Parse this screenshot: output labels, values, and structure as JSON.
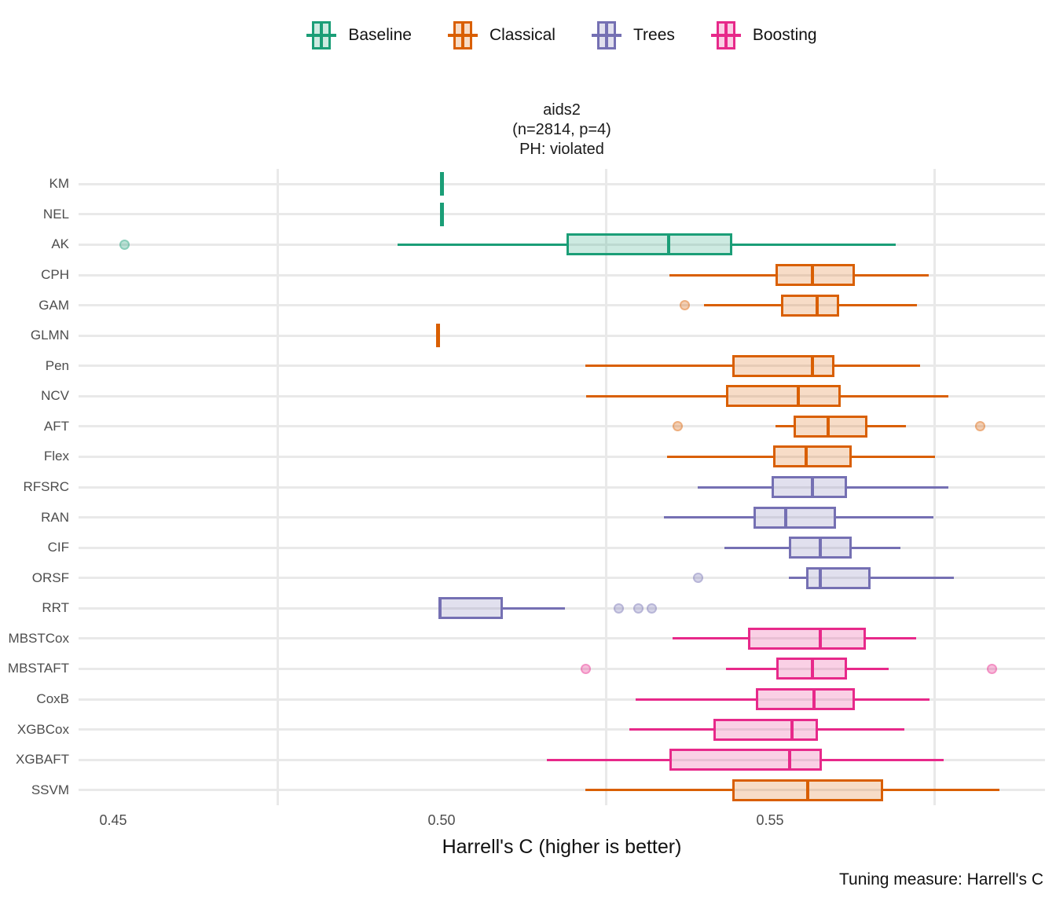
{
  "title": {
    "dataset": "aids2",
    "params": "(n=2814, p=4)",
    "ph": "PH: violated"
  },
  "x_axis": {
    "label": "Harrell's C (higher is better)",
    "tick_labels": [
      "0.45",
      "0.50",
      "0.55"
    ],
    "tick_values": [
      0.45,
      0.5,
      0.55
    ]
  },
  "caption": {
    "text": "Tuning measure: Harrell's C"
  },
  "chart_data": {
    "type": "boxplot",
    "orientation": "horizontal",
    "title": "aids2 (n=2814, p=4) PH: violated",
    "xlabel": "Harrell's C (higher is better)",
    "xlim": [
      0.4447,
      0.5919
    ],
    "x_major_ticks": [
      0.45,
      0.5,
      0.55
    ],
    "x_minor_ticks": [
      0.475,
      0.525,
      0.575
    ],
    "grid": "major-y rows + minor-x verticals, light gray, no axis lines",
    "legend_position": "top",
    "groups": [
      {
        "name": "Baseline",
        "color": "#1b9e77"
      },
      {
        "name": "Classical",
        "color": "#d95f02"
      },
      {
        "name": "Trees",
        "color": "#7570b3"
      },
      {
        "name": "Boosting",
        "color": "#e7298a"
      }
    ],
    "rows": [
      {
        "model": "KM",
        "group": "Baseline",
        "lo": 0.5,
        "q1": 0.5,
        "med": 0.5,
        "q3": 0.5,
        "hi": 0.5,
        "outliers": []
      },
      {
        "model": "NEL",
        "group": "Baseline",
        "lo": 0.5,
        "q1": 0.5,
        "med": 0.5,
        "q3": 0.5,
        "hi": 0.5,
        "outliers": []
      },
      {
        "model": "AK",
        "group": "Baseline",
        "lo": 0.4933,
        "q1": 0.519,
        "med": 0.5346,
        "q3": 0.5442,
        "hi": 0.5691,
        "outliers": [
          0.4517
        ]
      },
      {
        "model": "CPH",
        "group": "Classical",
        "lo": 0.5347,
        "q1": 0.5508,
        "med": 0.5565,
        "q3": 0.5629,
        "hi": 0.5742,
        "outliers": []
      },
      {
        "model": "GAM",
        "group": "Classical",
        "lo": 0.54,
        "q1": 0.5517,
        "med": 0.5572,
        "q3": 0.5605,
        "hi": 0.5724,
        "outliers": [
          0.537
        ]
      },
      {
        "model": "GLMN",
        "group": "Classical",
        "lo": 0.4995,
        "q1": 0.4995,
        "med": 0.4995,
        "q3": 0.4995,
        "hi": 0.4995,
        "outliers": []
      },
      {
        "model": "Pen",
        "group": "Classical",
        "lo": 0.5219,
        "q1": 0.5443,
        "med": 0.5565,
        "q3": 0.5598,
        "hi": 0.5729,
        "outliers": []
      },
      {
        "model": "NCV",
        "group": "Classical",
        "lo": 0.522,
        "q1": 0.5433,
        "med": 0.5543,
        "q3": 0.5608,
        "hi": 0.5772,
        "outliers": []
      },
      {
        "model": "AFT",
        "group": "Classical",
        "lo": 0.5508,
        "q1": 0.5536,
        "med": 0.5589,
        "q3": 0.5648,
        "hi": 0.5707,
        "outliers": [
          0.5359,
          0.582
        ]
      },
      {
        "model": "Flex",
        "group": "Classical",
        "lo": 0.5343,
        "q1": 0.5505,
        "med": 0.5555,
        "q3": 0.5624,
        "hi": 0.5751,
        "outliers": []
      },
      {
        "model": "RFSRC",
        "group": "Trees",
        "lo": 0.539,
        "q1": 0.5502,
        "med": 0.5565,
        "q3": 0.5617,
        "hi": 0.5772,
        "outliers": []
      },
      {
        "model": "RAN",
        "group": "Trees",
        "lo": 0.5339,
        "q1": 0.5475,
        "med": 0.5524,
        "q3": 0.56,
        "hi": 0.5749,
        "outliers": []
      },
      {
        "model": "CIF",
        "group": "Trees",
        "lo": 0.5431,
        "q1": 0.5529,
        "med": 0.5577,
        "q3": 0.5624,
        "hi": 0.5698,
        "outliers": []
      },
      {
        "model": "ORSF",
        "group": "Trees",
        "lo": 0.5529,
        "q1": 0.5555,
        "med": 0.5577,
        "q3": 0.5653,
        "hi": 0.578,
        "outliers": [
          0.539
        ]
      },
      {
        "model": "RRT",
        "group": "Trees",
        "lo": 0.4995,
        "q1": 0.4995,
        "med": 0.4998,
        "q3": 0.5093,
        "hi": 0.5188,
        "outliers": [
          0.527,
          0.53,
          0.532
        ]
      },
      {
        "model": "MBSTCox",
        "group": "Boosting",
        "lo": 0.5352,
        "q1": 0.5467,
        "med": 0.5577,
        "q3": 0.5646,
        "hi": 0.5722,
        "outliers": []
      },
      {
        "model": "MBSTAFT",
        "group": "Boosting",
        "lo": 0.5433,
        "q1": 0.551,
        "med": 0.5565,
        "q3": 0.5617,
        "hi": 0.5681,
        "outliers": [
          0.5219,
          0.5838
        ]
      },
      {
        "model": "CoxB",
        "group": "Boosting",
        "lo": 0.5296,
        "q1": 0.5479,
        "med": 0.5567,
        "q3": 0.5629,
        "hi": 0.5743,
        "outliers": []
      },
      {
        "model": "XGBCox",
        "group": "Boosting",
        "lo": 0.5286,
        "q1": 0.5414,
        "med": 0.5533,
        "q3": 0.5573,
        "hi": 0.5704,
        "outliers": []
      },
      {
        "model": "XGBAFT",
        "group": "Boosting",
        "lo": 0.516,
        "q1": 0.5347,
        "med": 0.553,
        "q3": 0.5579,
        "hi": 0.5764,
        "outliers": []
      },
      {
        "model": "SSVM",
        "group": "Classical",
        "lo": 0.5219,
        "q1": 0.5442,
        "med": 0.5557,
        "q3": 0.5672,
        "hi": 0.5849,
        "outliers": []
      }
    ]
  }
}
